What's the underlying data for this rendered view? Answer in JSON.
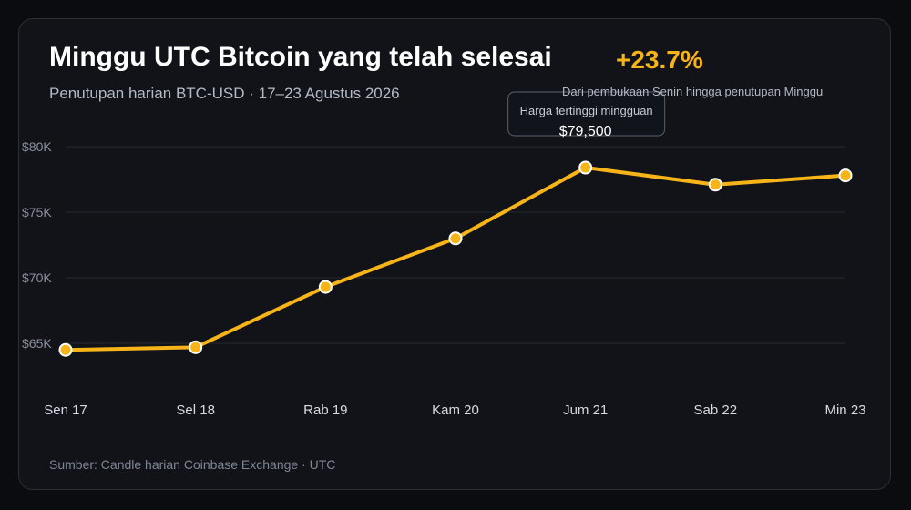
{
  "header": {
    "title": "Minggu UTC Bitcoin yang telah selesai",
    "subtitle": "Penutupan harian BTC-USD · 17–23 Agustus 2026",
    "change_value": "+23.7%",
    "change_note": "Dari pembukaan Senin hingga penutupan Minggu"
  },
  "footer": {
    "source": "Sumber: Candle harian Coinbase Exchange · UTC"
  },
  "colors": {
    "line": "#f7b419",
    "accent": "#f7b419",
    "point_stroke": "#ffffff",
    "grid": "#262a33",
    "tick_text": "#8a8f9c",
    "x_tick_text": "#d7dae2",
    "tooltip_border": "#5b606d",
    "tooltip_bg": "#14161c"
  },
  "chart_data": {
    "type": "line",
    "categories": [
      "Sen 17",
      "Sel 18",
      "Rab 19",
      "Kam 20",
      "Jum 21",
      "Sab 22",
      "Min 23"
    ],
    "series": [
      {
        "values": [
          64500,
          64700,
          69300,
          73000,
          78400,
          77100,
          77800
        ]
      }
    ],
    "ylim": [
      62000,
      81300
    ],
    "yticks": [
      65000,
      70000,
      75000,
      80000
    ],
    "ytick_labels": [
      "$65K",
      "$70K",
      "$75K",
      "$80K"
    ],
    "grid": true,
    "xlabel": "",
    "ylabel": "",
    "annotation": {
      "label": "Harga tertinggi mingguan",
      "value": "$79,500",
      "category": "Jum 21"
    }
  }
}
